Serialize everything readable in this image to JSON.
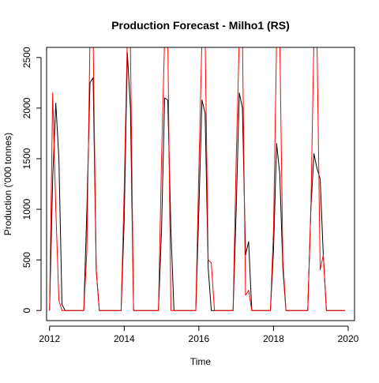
{
  "chart_data": {
    "type": "line",
    "title": "Production Forecast - Milho1 (RS)",
    "xlabel": "Time",
    "ylabel": "Production ('000 tonnes)",
    "xlim": [
      2011.92,
      2020.17
    ],
    "ylim": [
      -100,
      2600
    ],
    "x_ticks": [
      2012,
      2014,
      2016,
      2018,
      2020
    ],
    "y_ticks": [
      0,
      500,
      1000,
      1500,
      2000,
      2500
    ],
    "grid": false,
    "legend": "none",
    "series": [
      {
        "color": "#000000",
        "points": [
          [
            2012.0,
            0
          ],
          [
            2012.083,
            1300
          ],
          [
            2012.167,
            2050
          ],
          [
            2012.25,
            1500
          ],
          [
            2012.333,
            60
          ],
          [
            2012.417,
            0
          ],
          [
            2012.5,
            0
          ],
          [
            2012.583,
            0
          ],
          [
            2012.667,
            0
          ],
          [
            2012.75,
            0
          ],
          [
            2012.833,
            0
          ],
          [
            2012.917,
            0
          ],
          [
            2013.0,
            1000
          ],
          [
            2013.083,
            2250
          ],
          [
            2013.167,
            2300
          ],
          [
            2013.25,
            400
          ],
          [
            2013.333,
            0
          ],
          [
            2013.417,
            0
          ],
          [
            2013.5,
            0
          ],
          [
            2013.583,
            0
          ],
          [
            2013.667,
            0
          ],
          [
            2013.75,
            0
          ],
          [
            2013.833,
            0
          ],
          [
            2013.917,
            0
          ],
          [
            2014.0,
            900
          ],
          [
            2014.083,
            2550
          ],
          [
            2014.167,
            2000
          ],
          [
            2014.25,
            0
          ],
          [
            2014.333,
            0
          ],
          [
            2014.417,
            0
          ],
          [
            2014.5,
            0
          ],
          [
            2014.583,
            0
          ],
          [
            2014.667,
            0
          ],
          [
            2014.75,
            0
          ],
          [
            2014.833,
            0
          ],
          [
            2014.917,
            0
          ],
          [
            2015.0,
            800
          ],
          [
            2015.083,
            2100
          ],
          [
            2015.167,
            2080
          ],
          [
            2015.25,
            800
          ],
          [
            2015.333,
            0
          ],
          [
            2015.417,
            0
          ],
          [
            2015.5,
            0
          ],
          [
            2015.583,
            0
          ],
          [
            2015.667,
            0
          ],
          [
            2015.75,
            0
          ],
          [
            2015.833,
            0
          ],
          [
            2015.917,
            0
          ],
          [
            2016.0,
            1000
          ],
          [
            2016.083,
            2080
          ],
          [
            2016.167,
            1950
          ],
          [
            2016.25,
            420
          ],
          [
            2016.333,
            0
          ],
          [
            2016.417,
            0
          ],
          [
            2016.5,
            0
          ],
          [
            2016.583,
            0
          ],
          [
            2016.667,
            0
          ],
          [
            2016.75,
            0
          ],
          [
            2016.833,
            0
          ],
          [
            2016.917,
            0
          ],
          [
            2017.0,
            1000
          ],
          [
            2017.083,
            2150
          ],
          [
            2017.167,
            2000
          ],
          [
            2017.25,
            550
          ],
          [
            2017.333,
            680
          ],
          [
            2017.417,
            0
          ],
          [
            2017.5,
            0
          ],
          [
            2017.583,
            0
          ],
          [
            2017.667,
            0
          ],
          [
            2017.75,
            0
          ],
          [
            2017.833,
            0
          ],
          [
            2017.917,
            0
          ],
          [
            2018.0,
            600
          ],
          [
            2018.083,
            1650
          ],
          [
            2018.167,
            1350
          ],
          [
            2018.25,
            420
          ],
          [
            2018.333,
            0
          ],
          [
            2018.417,
            0
          ],
          [
            2018.5,
            0
          ],
          [
            2018.583,
            0
          ],
          [
            2018.667,
            0
          ],
          [
            2018.75,
            0
          ],
          [
            2018.833,
            0
          ],
          [
            2018.917,
            0
          ],
          [
            2019.0,
            1000
          ],
          [
            2019.083,
            1550
          ],
          [
            2019.167,
            1400
          ],
          [
            2019.25,
            1300
          ],
          [
            2019.333,
            550
          ],
          [
            2019.417,
            0
          ],
          [
            2019.5,
            0
          ],
          [
            2019.583,
            0
          ],
          [
            2019.667,
            0
          ],
          [
            2019.75,
            0
          ],
          [
            2019.833,
            0
          ],
          [
            2019.917,
            0
          ]
        ]
      },
      {
        "color": "#ff0000",
        "points": [
          [
            2012.0,
            0
          ],
          [
            2012.083,
            2150
          ],
          [
            2012.167,
            1000
          ],
          [
            2012.25,
            100
          ],
          [
            2012.333,
            0
          ],
          [
            2012.417,
            0
          ],
          [
            2012.5,
            0
          ],
          [
            2012.583,
            0
          ],
          [
            2012.667,
            0
          ],
          [
            2012.75,
            0
          ],
          [
            2012.833,
            0
          ],
          [
            2012.917,
            0
          ],
          [
            2013.0,
            600
          ],
          [
            2013.083,
            2700
          ],
          [
            2013.167,
            2700
          ],
          [
            2013.25,
            400
          ],
          [
            2013.333,
            0
          ],
          [
            2013.417,
            0
          ],
          [
            2013.5,
            0
          ],
          [
            2013.583,
            0
          ],
          [
            2013.667,
            0
          ],
          [
            2013.75,
            0
          ],
          [
            2013.833,
            0
          ],
          [
            2013.917,
            0
          ],
          [
            2014.0,
            1200
          ],
          [
            2014.083,
            2700
          ],
          [
            2014.167,
            2600
          ],
          [
            2014.25,
            0
          ],
          [
            2014.333,
            0
          ],
          [
            2014.417,
            0
          ],
          [
            2014.5,
            0
          ],
          [
            2014.583,
            0
          ],
          [
            2014.667,
            0
          ],
          [
            2014.75,
            0
          ],
          [
            2014.833,
            0
          ],
          [
            2014.917,
            0
          ],
          [
            2015.0,
            1500
          ],
          [
            2015.083,
            2700
          ],
          [
            2015.167,
            2700
          ],
          [
            2015.25,
            0
          ],
          [
            2015.333,
            0
          ],
          [
            2015.417,
            0
          ],
          [
            2015.5,
            0
          ],
          [
            2015.583,
            0
          ],
          [
            2015.667,
            0
          ],
          [
            2015.75,
            0
          ],
          [
            2015.833,
            0
          ],
          [
            2015.917,
            0
          ],
          [
            2016.0,
            1400
          ],
          [
            2016.083,
            2700
          ],
          [
            2016.167,
            2700
          ],
          [
            2016.25,
            500
          ],
          [
            2016.333,
            470
          ],
          [
            2016.417,
            0
          ],
          [
            2016.5,
            0
          ],
          [
            2016.583,
            0
          ],
          [
            2016.667,
            0
          ],
          [
            2016.75,
            0
          ],
          [
            2016.833,
            0
          ],
          [
            2016.917,
            0
          ],
          [
            2017.0,
            1500
          ],
          [
            2017.083,
            2700
          ],
          [
            2017.167,
            2700
          ],
          [
            2017.25,
            150
          ],
          [
            2017.333,
            200
          ],
          [
            2017.417,
            0
          ],
          [
            2017.5,
            0
          ],
          [
            2017.583,
            0
          ],
          [
            2017.667,
            0
          ],
          [
            2017.75,
            0
          ],
          [
            2017.833,
            0
          ],
          [
            2017.917,
            0
          ],
          [
            2018.0,
            800
          ],
          [
            2018.083,
            2700
          ],
          [
            2018.167,
            2700
          ],
          [
            2018.25,
            500
          ],
          [
            2018.333,
            0
          ],
          [
            2018.417,
            0
          ],
          [
            2018.5,
            0
          ],
          [
            2018.583,
            0
          ],
          [
            2018.667,
            0
          ],
          [
            2018.75,
            0
          ],
          [
            2018.833,
            0
          ],
          [
            2018.917,
            0
          ],
          [
            2019.0,
            1000
          ],
          [
            2019.083,
            2700
          ],
          [
            2019.167,
            2600
          ],
          [
            2019.25,
            400
          ],
          [
            2019.333,
            550
          ],
          [
            2019.417,
            0
          ],
          [
            2019.5,
            0
          ],
          [
            2019.583,
            0
          ],
          [
            2019.667,
            0
          ],
          [
            2019.75,
            0
          ],
          [
            2019.833,
            0
          ],
          [
            2019.917,
            0
          ]
        ]
      }
    ]
  }
}
